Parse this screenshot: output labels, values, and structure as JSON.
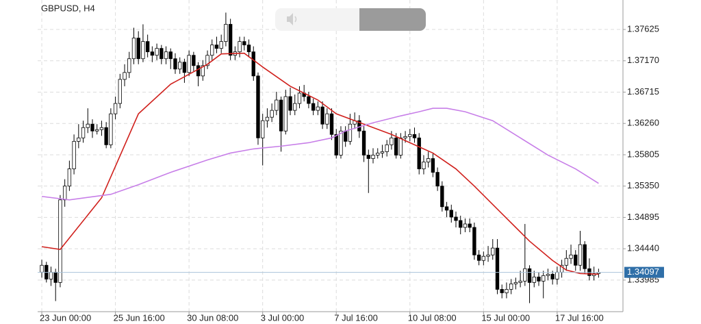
{
  "chart_data": {
    "type": "candlestick",
    "title": "GBPUSD, H4",
    "ohlc": [
      [
        1.341,
        1.3428,
        1.3402,
        1.342
      ],
      [
        1.342,
        1.3425,
        1.3395,
        1.34
      ],
      [
        1.34,
        1.3418,
        1.339,
        1.341
      ],
      [
        1.341,
        1.3415,
        1.3368,
        1.3395
      ],
      [
        1.3395,
        1.3522,
        1.3388,
        1.3515
      ],
      [
        1.3515,
        1.3545,
        1.3505,
        1.3535
      ],
      [
        1.3535,
        1.3572,
        1.3528,
        1.356
      ],
      [
        1.356,
        1.361,
        1.3552,
        1.36
      ],
      [
        1.36,
        1.3625,
        1.359,
        1.3605
      ],
      [
        1.3605,
        1.363,
        1.3598,
        1.362
      ],
      [
        1.362,
        1.3648,
        1.3612,
        1.3625
      ],
      [
        1.3625,
        1.3632,
        1.3605,
        1.3615
      ],
      [
        1.3615,
        1.3625,
        1.361,
        1.3617
      ],
      [
        1.3617,
        1.363,
        1.3608,
        1.362
      ],
      [
        1.362,
        1.3628,
        1.359,
        1.3595
      ],
      [
        1.3595,
        1.3648,
        1.359,
        1.364
      ],
      [
        1.364,
        1.3665,
        1.3632,
        1.3655
      ],
      [
        1.3655,
        1.3698,
        1.3648,
        1.369
      ],
      [
        1.369,
        1.3712,
        1.368,
        1.37
      ],
      [
        1.37,
        1.373,
        1.3692,
        1.372
      ],
      [
        1.372,
        1.3765,
        1.3712,
        1.375
      ],
      [
        1.375,
        1.376,
        1.3712,
        1.372
      ],
      [
        1.372,
        1.377,
        1.3715,
        1.3745
      ],
      [
        1.3745,
        1.3755,
        1.3722,
        1.373
      ],
      [
        1.373,
        1.3738,
        1.3715,
        1.3725
      ],
      [
        1.3725,
        1.3742,
        1.3718,
        1.3735
      ],
      [
        1.3735,
        1.374,
        1.3712,
        1.372
      ],
      [
        1.372,
        1.3738,
        1.3712,
        1.373
      ],
      [
        1.373,
        1.3735,
        1.3705,
        1.372
      ],
      [
        1.372,
        1.3728,
        1.3698,
        1.3705
      ],
      [
        1.3705,
        1.3722,
        1.3698,
        1.3715
      ],
      [
        1.3715,
        1.372,
        1.3685,
        1.37
      ],
      [
        1.37,
        1.3732,
        1.3695,
        1.3725
      ],
      [
        1.3725,
        1.373,
        1.3702,
        1.371
      ],
      [
        1.371,
        1.3715,
        1.368,
        1.3695
      ],
      [
        1.3695,
        1.3718,
        1.3688,
        1.371
      ],
      [
        1.371,
        1.3732,
        1.3705,
        1.3725
      ],
      [
        1.3725,
        1.3748,
        1.3718,
        1.374
      ],
      [
        1.374,
        1.3752,
        1.3728,
        1.3735
      ],
      [
        1.3735,
        1.3755,
        1.3728,
        1.3745
      ],
      [
        1.3745,
        1.3787,
        1.3738,
        1.377
      ],
      [
        1.377,
        1.3778,
        1.3718,
        1.3725
      ],
      [
        1.3725,
        1.3738,
        1.3718,
        1.373
      ],
      [
        1.373,
        1.3752,
        1.3722,
        1.3745
      ],
      [
        1.3745,
        1.3752,
        1.3732,
        1.374
      ],
      [
        1.374,
        1.3748,
        1.3722,
        1.373
      ],
      [
        1.373,
        1.3738,
        1.3688,
        1.3695
      ],
      [
        1.3695,
        1.37,
        1.3595,
        1.3605
      ],
      [
        1.3605,
        1.364,
        1.3565,
        1.363
      ],
      [
        1.363,
        1.3648,
        1.362,
        1.3635
      ],
      [
        1.3635,
        1.3655,
        1.3628,
        1.3645
      ],
      [
        1.3645,
        1.3672,
        1.3638,
        1.366
      ],
      [
        1.366,
        1.3665,
        1.3585,
        1.3615
      ],
      [
        1.3615,
        1.3675,
        1.361,
        1.3665
      ],
      [
        1.3665,
        1.3678,
        1.3638,
        1.3645
      ],
      [
        1.3645,
        1.3668,
        1.3638,
        1.3655
      ],
      [
        1.3655,
        1.368,
        1.3648,
        1.367
      ],
      [
        1.367,
        1.3682,
        1.3658,
        1.3665
      ],
      [
        1.3665,
        1.3672,
        1.3648,
        1.3655
      ],
      [
        1.3655,
        1.3662,
        1.3638,
        1.3645
      ],
      [
        1.3645,
        1.3658,
        1.3638,
        1.365
      ],
      [
        1.365,
        1.3658,
        1.3618,
        1.3625
      ],
      [
        1.3625,
        1.3648,
        1.3618,
        1.364
      ],
      [
        1.364,
        1.3648,
        1.3602,
        1.361
      ],
      [
        1.361,
        1.3618,
        1.3575,
        1.358
      ],
      [
        1.358,
        1.3622,
        1.3575,
        1.3615
      ],
      [
        1.3615,
        1.3622,
        1.3592,
        1.36
      ],
      [
        1.36,
        1.364,
        1.3595,
        1.3625
      ],
      [
        1.3625,
        1.3642,
        1.3618,
        1.363
      ],
      [
        1.363,
        1.3638,
        1.3605,
        1.3615
      ],
      [
        1.3615,
        1.3622,
        1.357,
        1.358
      ],
      [
        1.358,
        1.3588,
        1.3525,
        1.3575
      ],
      [
        1.3575,
        1.359,
        1.3568,
        1.358
      ],
      [
        1.358,
        1.359,
        1.3575,
        1.3583
      ],
      [
        1.3583,
        1.3595,
        1.3576,
        1.3585
      ],
      [
        1.3585,
        1.3602,
        1.3578,
        1.3595
      ],
      [
        1.3595,
        1.3615,
        1.3588,
        1.3605
      ],
      [
        1.3605,
        1.3612,
        1.3575,
        1.358
      ],
      [
        1.358,
        1.3612,
        1.3575,
        1.3605
      ],
      [
        1.3605,
        1.3615,
        1.3598,
        1.3607
      ],
      [
        1.3607,
        1.3618,
        1.36,
        1.361
      ],
      [
        1.361,
        1.362,
        1.3598,
        1.3605
      ],
      [
        1.3605,
        1.3612,
        1.3552,
        1.356
      ],
      [
        1.356,
        1.358,
        1.3552,
        1.357
      ],
      [
        1.357,
        1.3585,
        1.3562,
        1.3575
      ],
      [
        1.3575,
        1.3582,
        1.3548,
        1.3555
      ],
      [
        1.3555,
        1.3562,
        1.3528,
        1.3535
      ],
      [
        1.3535,
        1.3542,
        1.3498,
        1.3505
      ],
      [
        1.3505,
        1.3512,
        1.349,
        1.35
      ],
      [
        1.35,
        1.3508,
        1.3482,
        1.349
      ],
      [
        1.349,
        1.3498,
        1.3475,
        1.3485
      ],
      [
        1.3485,
        1.3492,
        1.3465,
        1.3475
      ],
      [
        1.3475,
        1.3488,
        1.3468,
        1.348
      ],
      [
        1.348,
        1.3488,
        1.3468,
        1.3475
      ],
      [
        1.3475,
        1.3482,
        1.3428,
        1.3435
      ],
      [
        1.3435,
        1.3442,
        1.342,
        1.3427
      ],
      [
        1.3427,
        1.344,
        1.342,
        1.3433
      ],
      [
        1.3433,
        1.3448,
        1.3425,
        1.3435
      ],
      [
        1.3435,
        1.3458,
        1.3428,
        1.3445
      ],
      [
        1.3445,
        1.3458,
        1.3378,
        1.3385
      ],
      [
        1.3385,
        1.3392,
        1.3372,
        1.338
      ],
      [
        1.338,
        1.3395,
        1.3372,
        1.3385
      ],
      [
        1.3385,
        1.34,
        1.3378,
        1.3393
      ],
      [
        1.3393,
        1.3402,
        1.3385,
        1.3395
      ],
      [
        1.3395,
        1.3412,
        1.3388,
        1.3397
      ],
      [
        1.3397,
        1.348,
        1.339,
        1.3415
      ],
      [
        1.3415,
        1.342,
        1.3365,
        1.3395
      ],
      [
        1.3395,
        1.3412,
        1.3388,
        1.3403
      ],
      [
        1.3403,
        1.341,
        1.339,
        1.3397
      ],
      [
        1.3397,
        1.3412,
        1.3372,
        1.3405
      ],
      [
        1.3405,
        1.3415,
        1.3398,
        1.3407
      ],
      [
        1.3407,
        1.3412,
        1.3392,
        1.34
      ],
      [
        1.34,
        1.3418,
        1.3392,
        1.341
      ],
      [
        1.341,
        1.3428,
        1.3402,
        1.342
      ],
      [
        1.342,
        1.3442,
        1.3412,
        1.343
      ],
      [
        1.343,
        1.345,
        1.3422,
        1.3435
      ],
      [
        1.3435,
        1.3442,
        1.3412,
        1.342
      ],
      [
        1.342,
        1.347,
        1.3412,
        1.345
      ],
      [
        1.345,
        1.3455,
        1.3408,
        1.3415
      ],
      [
        1.3415,
        1.343,
        1.3398,
        1.3405
      ],
      [
        1.3405,
        1.3418,
        1.3398,
        1.3408
      ],
      [
        1.3408,
        1.3415,
        1.3402,
        1.34097
      ]
    ],
    "up_color": "#ffffff",
    "down_color": "#000000",
    "xlim": [
      -0.9,
      126.3
    ],
    "xticks": [
      {
        "value": 0,
        "label": "23 Jun 00:00"
      },
      {
        "value": 16,
        "label": "25 Jun 16:00"
      },
      {
        "value": 32,
        "label": "30 Jun 08:00"
      },
      {
        "value": 48,
        "label": "3 Jul 00:00"
      },
      {
        "value": 64,
        "label": "7 Jul 16:00"
      },
      {
        "value": 80,
        "label": "10 Jul 08:00"
      },
      {
        "value": 96,
        "label": "15 Jul 00:00"
      },
      {
        "value": 112,
        "label": "17 Jul 16:00"
      }
    ],
    "ylim": [
      1.33526,
      1.38053
    ],
    "yticks": [
      1.33985,
      {
        "value": 1.3444,
        "label": "1.34440"
      },
      1.34895,
      {
        "value": 1.3535,
        "label": "1.35350"
      },
      1.35805,
      {
        "value": 1.3626,
        "label": "1.36260"
      },
      1.36715,
      {
        "value": 1.3717,
        "label": "1.37170"
      },
      1.37625
    ],
    "grid": true,
    "series": [
      {
        "color": "#d0201c",
        "x": [
          0,
          4,
          13,
          21,
          28,
          36,
          39,
          44,
          48,
          54,
          60,
          64,
          70,
          76,
          81,
          85,
          90,
          94,
          100,
          106,
          111,
          114,
          117,
          121
        ],
        "values": [
          1.3447,
          1.3443,
          1.3518,
          1.364,
          1.3683,
          1.3712,
          1.3727,
          1.3728,
          1.3708,
          1.368,
          1.366,
          1.364,
          1.3625,
          1.361,
          1.3595,
          1.3583,
          1.356,
          1.3535,
          1.3495,
          1.3455,
          1.3427,
          1.3413,
          1.3408,
          1.3407
        ]
      },
      {
        "color": "#c77ee8",
        "x": [
          0,
          6,
          15,
          21,
          28,
          36,
          41,
          46,
          52,
          58,
          63,
          66,
          72,
          78,
          82,
          85,
          88,
          92,
          98,
          104,
          110,
          116,
          121
        ],
        "values": [
          1.352,
          1.3515,
          1.3523,
          1.3537,
          1.3555,
          1.3573,
          1.3583,
          1.3589,
          1.3593,
          1.3598,
          1.3605,
          1.3615,
          1.3627,
          1.3637,
          1.3643,
          1.3648,
          1.3648,
          1.3643,
          1.363,
          1.3605,
          1.358,
          1.356,
          1.3539
        ]
      }
    ],
    "current_price": 1.34097,
    "current_price_color": "#2f6fa8"
  }
}
